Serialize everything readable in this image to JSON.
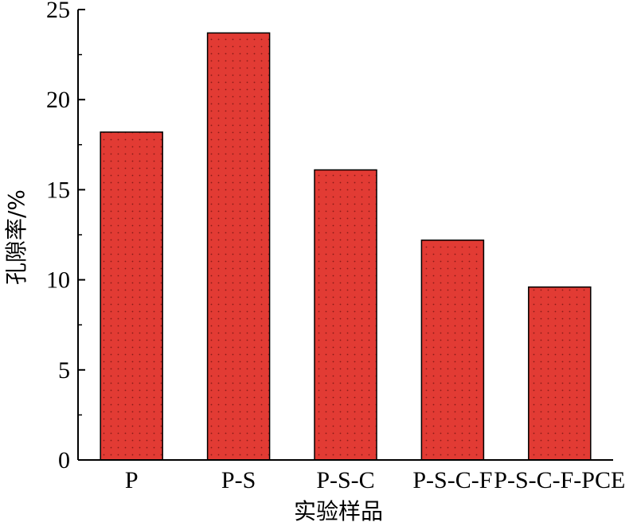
{
  "chart_data": {
    "type": "bar",
    "title": "",
    "xlabel": "实验样品",
    "ylabel": "孔隙率/%",
    "categories": [
      "P",
      "P-S",
      "P-S-C",
      "P-S-C-F",
      "P-S-C-F-PCE"
    ],
    "values": [
      18.2,
      23.7,
      16.1,
      12.2,
      9.6
    ],
    "ylim": [
      0,
      25
    ],
    "yticks": [
      0,
      5,
      10,
      15,
      20,
      25
    ],
    "grid": false,
    "legend": "none",
    "bar_color": "#e23b34",
    "bar_pattern_color": "#8a1a17",
    "axis_color": "#000000"
  }
}
